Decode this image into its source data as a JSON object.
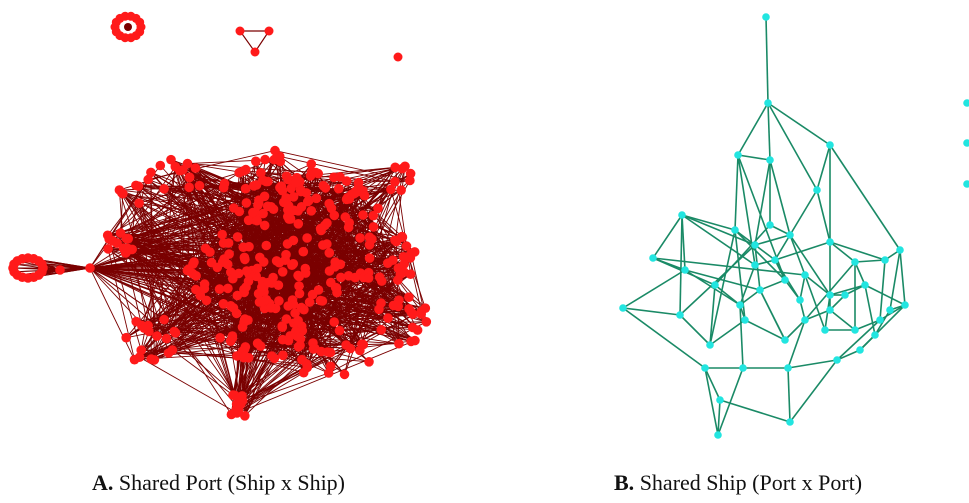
{
  "panels": [
    {
      "id": "A",
      "letter": "A.",
      "caption": "Shared Port (Ship x Ship)",
      "node_color": "#ff1a1a",
      "edge_color": "#7a0000"
    },
    {
      "id": "B",
      "letter": "B.",
      "caption": "Shared Ship (Port x Port)",
      "node_color": "#22e5e0",
      "edge_color": "#1a8a66"
    }
  ]
}
